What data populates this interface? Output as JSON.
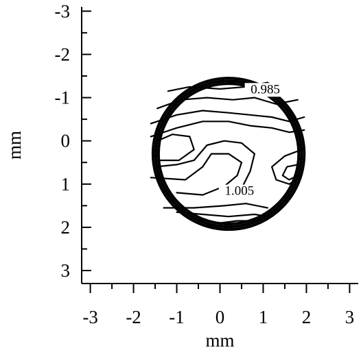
{
  "chart_data": {
    "type": "contour",
    "xlabel": "mm",
    "ylabel": "mm",
    "xlim": [
      -3.2,
      3.2
    ],
    "ylim": [
      3.3,
      -3.1
    ],
    "x_ticks": [
      -3,
      -2,
      -1,
      0,
      1,
      2,
      3
    ],
    "y_ticks": [
      -3,
      -2,
      -1,
      0,
      1,
      2,
      3
    ],
    "x_tick_labels": [
      "-3",
      "-2",
      "-1",
      "0",
      "1",
      "2",
      "3"
    ],
    "y_tick_labels": [
      "-3",
      "-2",
      "-1",
      "0",
      "1",
      "2",
      "3"
    ],
    "aperture_circle": {
      "cx": 0.2,
      "cy": 0.3,
      "r": 1.75
    },
    "contour_labels": [
      {
        "text": "0.985",
        "x": 1.05,
        "y": -1.1
      },
      {
        "text": "1.005",
        "x": 0.45,
        "y": 1.25
      }
    ],
    "contours": [
      {
        "points": [
          [
            -1.2,
            -1.15
          ],
          [
            -0.7,
            -1.25
          ],
          [
            0,
            -1.2
          ],
          [
            0.6,
            -1.25
          ],
          [
            1.1,
            -1.35
          ],
          [
            1.5,
            -1.1
          ]
        ]
      },
      {
        "points": [
          [
            -1.45,
            -0.75
          ],
          [
            -0.9,
            -0.95
          ],
          [
            -0.3,
            -1.0
          ],
          [
            0.3,
            -0.95
          ],
          [
            0.8,
            -1.0
          ],
          [
            1.3,
            -0.85
          ],
          [
            1.8,
            -0.95
          ]
        ]
      },
      {
        "points": [
          [
            -1.6,
            -0.4
          ],
          [
            -1.0,
            -0.6
          ],
          [
            -0.4,
            -0.7
          ],
          [
            0.2,
            -0.65
          ],
          [
            0.7,
            -0.6
          ],
          [
            1.2,
            -0.55
          ],
          [
            1.6,
            -0.45
          ],
          [
            1.95,
            -0.55
          ]
        ]
      },
      {
        "points": [
          [
            -1.6,
            -0.1
          ],
          [
            -1.0,
            -0.3
          ],
          [
            -0.4,
            -0.45
          ],
          [
            0.2,
            -0.45
          ],
          [
            0.7,
            -0.35
          ],
          [
            1.2,
            -0.3
          ],
          [
            1.6,
            -0.2
          ],
          [
            1.95,
            -0.25
          ]
        ]
      },
      {
        "points": [
          [
            -1.45,
            0.0
          ],
          [
            -1.1,
            -0.15
          ],
          [
            -0.7,
            -0.1
          ],
          [
            -0.6,
            0.2
          ],
          [
            -0.95,
            0.45
          ],
          [
            -1.4,
            0.45
          ]
        ]
      },
      {
        "points": [
          [
            -1.5,
            0.6
          ],
          [
            -1.0,
            0.55
          ],
          [
            -0.6,
            0.45
          ],
          [
            -0.3,
            0.1
          ],
          [
            0.1,
            0.0
          ],
          [
            0.5,
            0.05
          ],
          [
            0.8,
            0.3
          ],
          [
            0.7,
            0.7
          ],
          [
            0.5,
            1.1
          ]
        ]
      },
      {
        "points": [
          [
            -1.6,
            0.85
          ],
          [
            -0.8,
            0.9
          ],
          [
            -0.4,
            0.6
          ],
          [
            -0.2,
            0.3
          ],
          [
            0.2,
            0.3
          ],
          [
            0.5,
            0.5
          ],
          [
            0.4,
            0.8
          ],
          [
            0.1,
            1.05
          ],
          [
            -0.4,
            1.25
          ],
          [
            -1.0,
            1.2
          ]
        ]
      },
      {
        "points": [
          [
            1.9,
            0.2
          ],
          [
            1.5,
            0.35
          ],
          [
            1.2,
            0.6
          ],
          [
            1.3,
            0.9
          ],
          [
            1.6,
            1.0
          ],
          [
            1.85,
            0.85
          ]
        ]
      },
      {
        "points": [
          [
            1.8,
            0.55
          ],
          [
            1.55,
            0.6
          ],
          [
            1.45,
            0.8
          ],
          [
            1.6,
            0.9
          ],
          [
            1.8,
            0.8
          ]
        ]
      },
      {
        "points": [
          [
            -1.3,
            1.55
          ],
          [
            -0.6,
            1.55
          ],
          [
            0.1,
            1.5
          ],
          [
            0.6,
            1.45
          ],
          [
            1.1,
            1.55
          ]
        ]
      },
      {
        "points": [
          [
            -1.0,
            1.65
          ],
          [
            -0.4,
            1.7
          ],
          [
            0.2,
            1.75
          ],
          [
            0.8,
            1.7
          ],
          [
            1.1,
            1.75
          ]
        ]
      },
      {
        "points": [
          [
            -0.6,
            1.8
          ],
          [
            0,
            1.9
          ],
          [
            0.4,
            1.85
          ],
          [
            0.8,
            1.85
          ]
        ]
      },
      {
        "points": [
          [
            -0.3,
            1.95
          ],
          [
            0.2,
            2.0
          ],
          [
            0.6,
            1.95
          ]
        ]
      },
      {
        "points": [
          [
            0.1,
            -1.45
          ],
          [
            0.3,
            -1.45
          ],
          [
            0.4,
            -1.4
          ],
          [
            0.25,
            -1.35
          ],
          [
            0.05,
            -1.4
          ]
        ]
      }
    ]
  }
}
